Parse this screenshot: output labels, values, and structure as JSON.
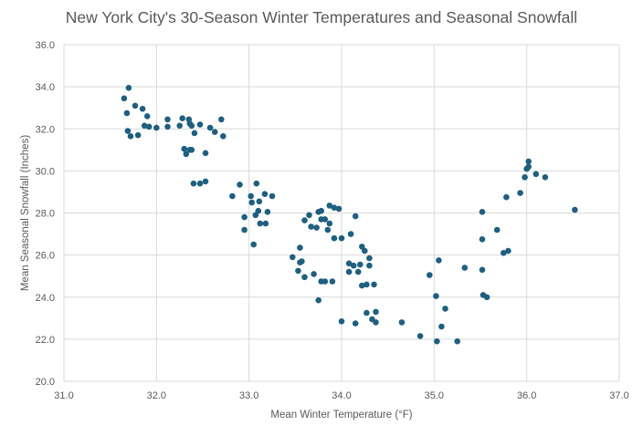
{
  "chart_data": {
    "type": "scatter",
    "title": "New York City's 30-Season Winter Temperatures and Seasonal Snowfall",
    "xlabel": "Mean Winter Temperature (°F)",
    "ylabel": "Mean Seasonal Snowfall (Inches)",
    "xlim": [
      31.0,
      37.0
    ],
    "ylim": [
      20.0,
      36.0
    ],
    "xticks": [
      "31.0",
      "32.0",
      "33.0",
      "34.0",
      "35.0",
      "36.0",
      "37.0"
    ],
    "yticks": [
      "20.0",
      "22.0",
      "24.0",
      "26.0",
      "28.0",
      "30.0",
      "32.0",
      "34.0",
      "36.0"
    ],
    "grid": true,
    "marker_color": "#1f5f7f",
    "points": [
      [
        31.65,
        33.45
      ],
      [
        31.7,
        33.95
      ],
      [
        31.68,
        32.75
      ],
      [
        31.69,
        31.9
      ],
      [
        31.72,
        31.65
      ],
      [
        31.77,
        33.1
      ],
      [
        31.8,
        31.7
      ],
      [
        31.85,
        32.95
      ],
      [
        31.87,
        32.15
      ],
      [
        31.9,
        32.6
      ],
      [
        31.92,
        32.1
      ],
      [
        32.0,
        32.05
      ],
      [
        32.12,
        32.45
      ],
      [
        32.12,
        32.1
      ],
      [
        32.25,
        32.15
      ],
      [
        32.28,
        32.5
      ],
      [
        32.35,
        32.45
      ],
      [
        32.36,
        32.25
      ],
      [
        32.38,
        32.15
      ],
      [
        32.41,
        31.8
      ],
      [
        32.47,
        32.2
      ],
      [
        32.3,
        31.05
      ],
      [
        32.32,
        30.8
      ],
      [
        32.36,
        31.0
      ],
      [
        32.38,
        31.0
      ],
      [
        32.53,
        30.85
      ],
      [
        32.58,
        32.05
      ],
      [
        32.63,
        31.85
      ],
      [
        32.7,
        32.45
      ],
      [
        32.72,
        31.65
      ],
      [
        32.4,
        29.4
      ],
      [
        32.47,
        29.4
      ],
      [
        32.53,
        29.5
      ],
      [
        32.82,
        28.8
      ],
      [
        32.9,
        29.35
      ],
      [
        32.95,
        27.8
      ],
      [
        32.95,
        27.2
      ],
      [
        33.02,
        28.8
      ],
      [
        33.03,
        28.5
      ],
      [
        33.05,
        26.5
      ],
      [
        33.08,
        29.4
      ],
      [
        33.07,
        27.9
      ],
      [
        33.1,
        28.1
      ],
      [
        33.11,
        28.55
      ],
      [
        33.12,
        27.5
      ],
      [
        33.17,
        28.9
      ],
      [
        33.18,
        27.5
      ],
      [
        33.2,
        28.05
      ],
      [
        33.25,
        28.8
      ],
      [
        33.47,
        25.9
      ],
      [
        33.53,
        25.25
      ],
      [
        33.55,
        25.65
      ],
      [
        33.55,
        26.35
      ],
      [
        33.57,
        25.7
      ],
      [
        33.6,
        27.65
      ],
      [
        33.6,
        24.95
      ],
      [
        33.65,
        27.9
      ],
      [
        33.67,
        27.35
      ],
      [
        33.7,
        25.1
      ],
      [
        33.73,
        27.3
      ],
      [
        33.75,
        28.05
      ],
      [
        33.75,
        23.85
      ],
      [
        33.78,
        24.75
      ],
      [
        33.78,
        28.1
      ],
      [
        33.78,
        27.7
      ],
      [
        33.82,
        24.75
      ],
      [
        33.82,
        27.7
      ],
      [
        33.85,
        27.2
      ],
      [
        33.87,
        28.35
      ],
      [
        33.87,
        27.5
      ],
      [
        33.9,
        24.75
      ],
      [
        33.92,
        28.25
      ],
      [
        33.92,
        26.8
      ],
      [
        33.97,
        28.2
      ],
      [
        34.0,
        26.8
      ],
      [
        34.0,
        22.85
      ],
      [
        34.08,
        25.6
      ],
      [
        34.08,
        25.2
      ],
      [
        34.1,
        27.0
      ],
      [
        34.13,
        25.5
      ],
      [
        34.15,
        27.85
      ],
      [
        34.15,
        22.75
      ],
      [
        34.18,
        25.2
      ],
      [
        34.2,
        25.55
      ],
      [
        34.22,
        26.4
      ],
      [
        34.22,
        24.55
      ],
      [
        34.25,
        26.2
      ],
      [
        34.27,
        24.6
      ],
      [
        34.27,
        23.25
      ],
      [
        34.3,
        25.85
      ],
      [
        34.3,
        25.5
      ],
      [
        34.33,
        22.95
      ],
      [
        34.35,
        24.6
      ],
      [
        34.37,
        23.3
      ],
      [
        34.37,
        22.8
      ],
      [
        34.65,
        22.8
      ],
      [
        34.85,
        22.15
      ],
      [
        34.95,
        25.05
      ],
      [
        35.02,
        24.05
      ],
      [
        35.03,
        21.9
      ],
      [
        35.05,
        25.75
      ],
      [
        35.08,
        22.6
      ],
      [
        35.12,
        23.45
      ],
      [
        35.25,
        21.9
      ],
      [
        35.33,
        25.4
      ],
      [
        35.52,
        28.05
      ],
      [
        35.52,
        26.75
      ],
      [
        35.52,
        25.3
      ],
      [
        35.53,
        24.1
      ],
      [
        35.57,
        24.0
      ],
      [
        35.68,
        27.2
      ],
      [
        35.75,
        26.1
      ],
      [
        35.78,
        28.75
      ],
      [
        35.8,
        26.2
      ],
      [
        35.93,
        28.95
      ],
      [
        35.98,
        29.7
      ],
      [
        36.0,
        30.1
      ],
      [
        36.02,
        30.2
      ],
      [
        36.02,
        30.45
      ],
      [
        36.1,
        29.85
      ],
      [
        36.2,
        29.7
      ],
      [
        36.52,
        28.15
      ]
    ]
  }
}
